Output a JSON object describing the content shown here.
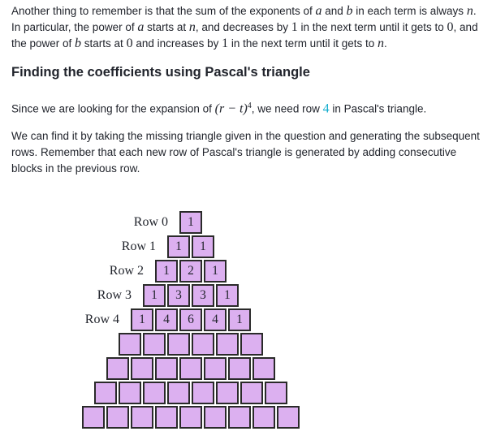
{
  "intro": {
    "t1": "Another thing to remember is that the sum of the exponents of ",
    "a": "a",
    "t2": " and ",
    "b": "b",
    "t3": " in each term is always ",
    "n": "n",
    "t4": ". In particular, the power of ",
    "a2": "a",
    "t5": " starts at ",
    "n2": "n",
    "t6": ", and decreases by ",
    "one": "1",
    "t7": " in the next term until it gets to ",
    "zero": "0",
    "t8": ", and the power of ",
    "b2": "b",
    "t9": " starts at ",
    "zero2": "0",
    "t10": " and increases by ",
    "one2": "1",
    "t11": " in the next term until it gets to ",
    "n3": "n",
    "t12": "."
  },
  "heading": "Finding the coefficients using Pascal's triangle",
  "para2": {
    "t1": "Since we are looking for the expansion of ",
    "expr": "(r − t)",
    "exp": "4",
    "t2": ", we need row ",
    "row": "4",
    "t3": " in Pascal's triangle."
  },
  "para3": "We can find it by taking the missing triangle given in the question and generating the subsequent rows. Remember that each new row of Pascal's triangle is generated by adding consecutive blocks in the previous row.",
  "triangle": {
    "row_labels": [
      "Row 0",
      "Row 1",
      "Row 2",
      "Row 3",
      "Row 4"
    ],
    "rows": [
      [
        "1"
      ],
      [
        "1",
        "1"
      ],
      [
        "1",
        "2",
        "1"
      ],
      [
        "1",
        "3",
        "3",
        "1"
      ],
      [
        "1",
        "4",
        "6",
        "4",
        "1"
      ],
      [
        "",
        "",
        "",
        "",
        "",
        ""
      ],
      [
        "",
        "",
        "",
        "",
        "",
        "",
        ""
      ],
      [
        "",
        "",
        "",
        "",
        "",
        "",
        "",
        ""
      ],
      [
        "",
        "",
        "",
        "",
        "",
        "",
        "",
        "",
        ""
      ]
    ],
    "cell_color": "#dcb0f0"
  }
}
